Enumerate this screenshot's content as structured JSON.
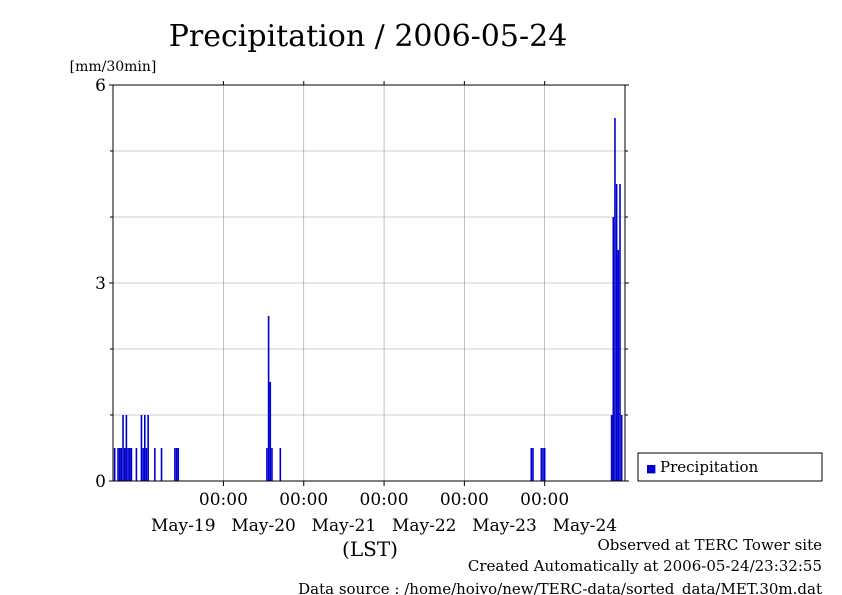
{
  "chart_data": {
    "type": "bar",
    "title": "Precipitation / 2006-05-24",
    "ylabel": "[mm/30min]",
    "xlabel": "(LST)",
    "ylim": [
      0,
      6
    ],
    "xlim": [
      "2006-05-18 15:00",
      "2006-05-25 00:00"
    ],
    "yticks": [
      "0",
      "3",
      "6"
    ],
    "xticks_time": [
      "00:00",
      "00:00",
      "00:00",
      "00:00",
      "00:00"
    ],
    "xticks_time_dates": [
      "2006-05-20",
      "2006-05-21",
      "2006-05-22",
      "2006-05-23",
      "2006-05-24"
    ],
    "xticks_dates": [
      "May-19",
      "May-20",
      "May-21",
      "May-22",
      "May-23",
      "May-24"
    ],
    "xticks_dates_positions": [
      "2006-05-19 12:00",
      "2006-05-20 12:00",
      "2006-05-21 12:00",
      "2006-05-22 12:00",
      "2006-05-23 12:00",
      "2006-05-24 12:00"
    ],
    "grid": true,
    "legend_position": "right-bottom",
    "series": [
      {
        "name": "Precipitation",
        "color": "#0000cc",
        "points": [
          [
            "2006-05-18 15:30",
            0.5
          ],
          [
            "2006-05-18 16:30",
            0.5
          ],
          [
            "2006-05-18 17:00",
            0.5
          ],
          [
            "2006-05-18 17:30",
            0.5
          ],
          [
            "2006-05-18 18:00",
            1.0
          ],
          [
            "2006-05-18 18:30",
            0.5
          ],
          [
            "2006-05-18 19:00",
            1.0
          ],
          [
            "2006-05-18 19:30",
            0.5
          ],
          [
            "2006-05-18 20:00",
            0.5
          ],
          [
            "2006-05-18 20:30",
            0.5
          ],
          [
            "2006-05-18 22:00",
            0.5
          ],
          [
            "2006-05-18 23:30",
            1.0
          ],
          [
            "2006-05-19 00:00",
            0.5
          ],
          [
            "2006-05-19 00:30",
            1.0
          ],
          [
            "2006-05-19 01:00",
            0.5
          ],
          [
            "2006-05-19 01:30",
            1.0
          ],
          [
            "2006-05-19 03:30",
            0.5
          ],
          [
            "2006-05-19 05:30",
            0.5
          ],
          [
            "2006-05-19 09:30",
            0.5
          ],
          [
            "2006-05-19 10:00",
            0.5
          ],
          [
            "2006-05-19 10:30",
            0.5
          ],
          [
            "2006-05-20 13:00",
            0.5
          ],
          [
            "2006-05-20 13:30",
            2.5
          ],
          [
            "2006-05-20 14:00",
            1.5
          ],
          [
            "2006-05-20 14:30",
            0.5
          ],
          [
            "2006-05-20 17:00",
            0.5
          ],
          [
            "2006-05-23 20:00",
            0.5
          ],
          [
            "2006-05-23 20:30",
            0.5
          ],
          [
            "2006-05-23 23:00",
            0.5
          ],
          [
            "2006-05-23 23:30",
            0.5
          ],
          [
            "2006-05-24 00:00",
            0.5
          ],
          [
            "2006-05-24 20:00",
            1.0
          ],
          [
            "2006-05-24 20:30",
            4.0
          ],
          [
            "2006-05-24 21:00",
            5.5
          ],
          [
            "2006-05-24 21:30",
            4.5
          ],
          [
            "2006-05-24 22:00",
            3.5
          ],
          [
            "2006-05-24 22:30",
            4.5
          ],
          [
            "2006-05-24 23:00",
            1.0
          ]
        ]
      }
    ]
  },
  "legend": {
    "label": "Precipitation",
    "marker": "■"
  },
  "footer": {
    "observed": "Observed at TERC Tower site",
    "created": "Created Automatically at 2006-05-24/23:32:55",
    "source": "Data source : /home/hoivo/new/TERC-data/sorted_data/MET.30m.dat"
  }
}
